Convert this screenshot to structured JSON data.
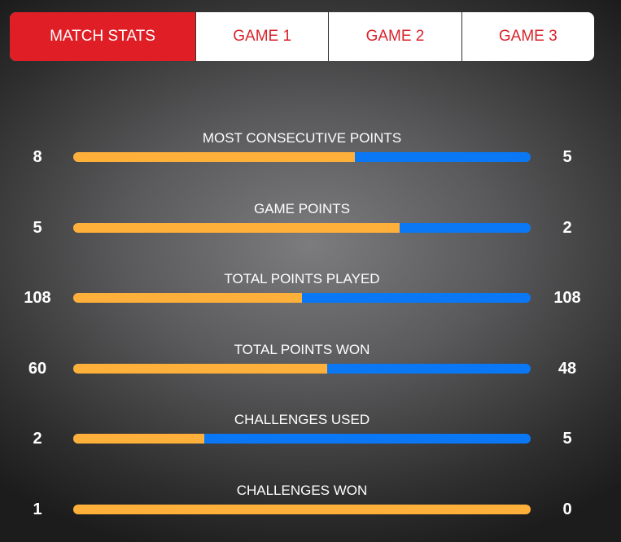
{
  "tabs": [
    {
      "label": "MATCH STATS",
      "active": true
    },
    {
      "label": "GAME 1"
    },
    {
      "label": "GAME 2"
    },
    {
      "label": "GAME 3"
    }
  ],
  "colors": {
    "left_player": "#ffb03a",
    "right_player": "#0a78f5",
    "active_tab": "#e01e25"
  },
  "stats": [
    {
      "title": "MOST CONSECUTIVE POINTS",
      "left": "8",
      "right": "5"
    },
    {
      "title": "GAME POINTS",
      "left": "5",
      "right": "2"
    },
    {
      "title": "TOTAL POINTS PLAYED",
      "left": "108",
      "right": "108"
    },
    {
      "title": "TOTAL POINTS WON",
      "left": "60",
      "right": "48"
    },
    {
      "title": "CHALLENGES USED",
      "left": "2",
      "right": "5"
    },
    {
      "title": "CHALLENGES WON",
      "left": "1",
      "right": "0"
    }
  ]
}
